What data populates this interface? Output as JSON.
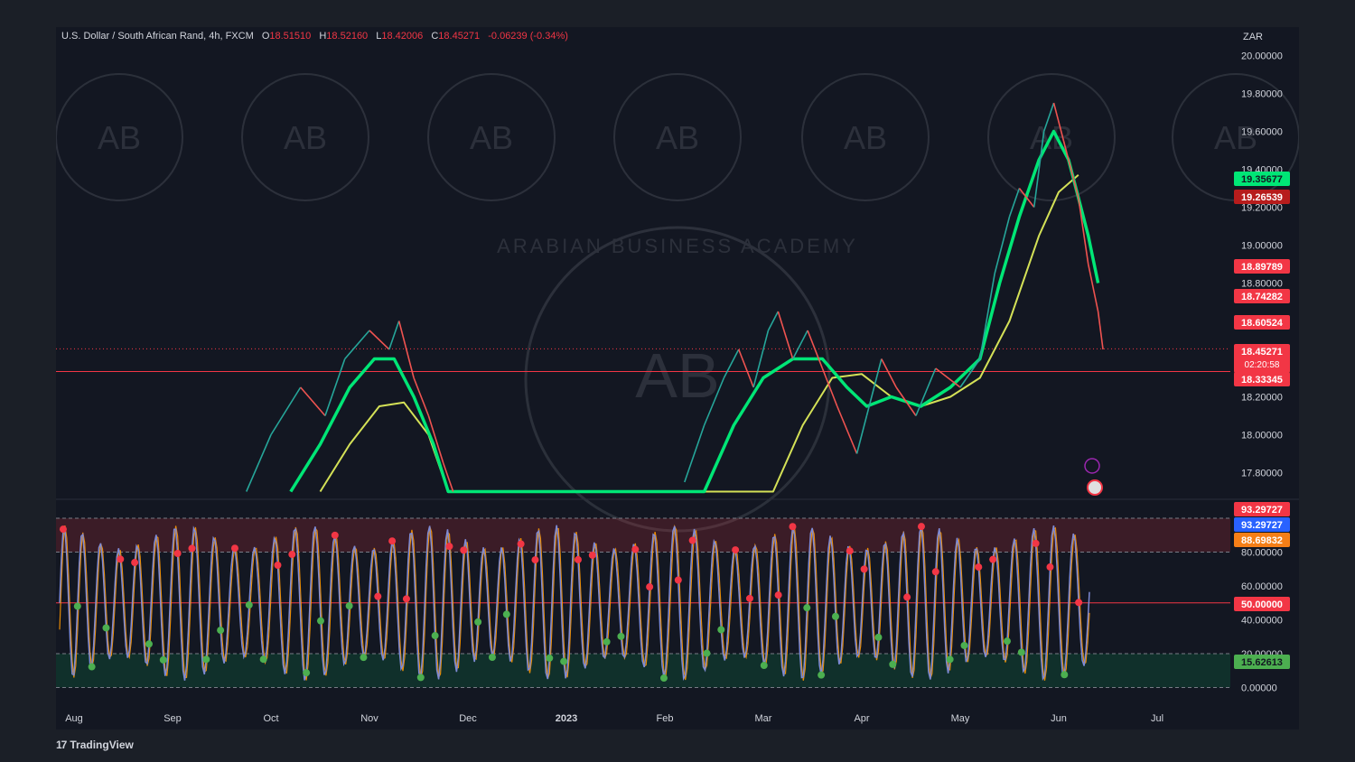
{
  "header": {
    "symbol": "U.S. Dollar / South African Rand, 4h, FXCM",
    "open_label": "O",
    "open": "18.51510",
    "high_label": "H",
    "high": "18.52160",
    "low_label": "L",
    "low": "18.42006",
    "close_label": "C",
    "close": "18.45271",
    "change": "-0.06239 (-0.34%)"
  },
  "currency": "ZAR",
  "brand": "TradingView",
  "watermark_text": "ARABIAN BUSINESS ACADEMY",
  "colors": {
    "background": "#131722",
    "up": "#00e676",
    "down": "#f23645",
    "yellow": "#d4e157",
    "osc": "#7e8ad4"
  },
  "chart_data": [
    {
      "type": "line",
      "title": "U.S. Dollar / South African Rand, 4h, FXCM",
      "x": [
        "Aug",
        "Sep",
        "Oct",
        "Nov",
        "Dec",
        "2023",
        "Feb",
        "Mar",
        "Apr",
        "May",
        "Jun",
        "Jul"
      ],
      "ylim": [
        17.7,
        20.0
      ],
      "y_ticks": [
        "20.00000",
        "19.80000",
        "19.60000",
        "19.40000",
        "19.20000",
        "19.00000",
        "18.80000",
        "18.20000",
        "18.00000",
        "17.80000"
      ],
      "price_series": [
        {
          "t": 1.75,
          "v": 17.7
        },
        {
          "t": 2.0,
          "v": 18.0
        },
        {
          "t": 2.3,
          "v": 18.25
        },
        {
          "t": 2.55,
          "v": 18.1
        },
        {
          "t": 2.75,
          "v": 18.4
        },
        {
          "t": 3.0,
          "v": 18.55
        },
        {
          "t": 3.2,
          "v": 18.45
        },
        {
          "t": 3.3,
          "v": 18.6
        },
        {
          "t": 3.45,
          "v": 18.3
        },
        {
          "t": 3.6,
          "v": 18.1
        },
        {
          "t": 3.75,
          "v": 17.85
        },
        {
          "t": 3.85,
          "v": 17.7
        },
        {
          "t": 6.2,
          "v": 17.75
        },
        {
          "t": 6.4,
          "v": 18.05
        },
        {
          "t": 6.6,
          "v": 18.3
        },
        {
          "t": 6.75,
          "v": 18.45
        },
        {
          "t": 6.9,
          "v": 18.25
        },
        {
          "t": 7.05,
          "v": 18.55
        },
        {
          "t": 7.15,
          "v": 18.65
        },
        {
          "t": 7.3,
          "v": 18.4
        },
        {
          "t": 7.45,
          "v": 18.55
        },
        {
          "t": 7.6,
          "v": 18.35
        },
        {
          "t": 7.75,
          "v": 18.15
        },
        {
          "t": 7.95,
          "v": 17.9
        },
        {
          "t": 8.05,
          "v": 18.1
        },
        {
          "t": 8.2,
          "v": 18.4
        },
        {
          "t": 8.35,
          "v": 18.25
        },
        {
          "t": 8.55,
          "v": 18.1
        },
        {
          "t": 8.75,
          "v": 18.35
        },
        {
          "t": 9.0,
          "v": 18.25
        },
        {
          "t": 9.2,
          "v": 18.4
        },
        {
          "t": 9.35,
          "v": 18.85
        },
        {
          "t": 9.5,
          "v": 19.15
        },
        {
          "t": 9.6,
          "v": 19.3
        },
        {
          "t": 9.75,
          "v": 19.2
        },
        {
          "t": 9.85,
          "v": 19.6
        },
        {
          "t": 9.95,
          "v": 19.75
        },
        {
          "t": 10.05,
          "v": 19.55
        },
        {
          "t": 10.2,
          "v": 19.25
        },
        {
          "t": 10.3,
          "v": 18.9
        },
        {
          "t": 10.4,
          "v": 18.65
        },
        {
          "t": 10.45,
          "v": 18.45
        }
      ],
      "fast_ma": [
        {
          "t": 2.2,
          "v": 17.7
        },
        {
          "t": 2.5,
          "v": 17.95
        },
        {
          "t": 2.8,
          "v": 18.25
        },
        {
          "t": 3.05,
          "v": 18.4
        },
        {
          "t": 3.25,
          "v": 18.4
        },
        {
          "t": 3.45,
          "v": 18.2
        },
        {
          "t": 3.65,
          "v": 17.95
        },
        {
          "t": 3.8,
          "v": 17.7
        },
        {
          "t": 6.4,
          "v": 17.7
        },
        {
          "t": 6.7,
          "v": 18.05
        },
        {
          "t": 7.0,
          "v": 18.3
        },
        {
          "t": 7.3,
          "v": 18.4
        },
        {
          "t": 7.6,
          "v": 18.4
        },
        {
          "t": 7.85,
          "v": 18.25
        },
        {
          "t": 8.05,
          "v": 18.15
        },
        {
          "t": 8.3,
          "v": 18.2
        },
        {
          "t": 8.6,
          "v": 18.15
        },
        {
          "t": 8.9,
          "v": 18.25
        },
        {
          "t": 9.2,
          "v": 18.4
        },
        {
          "t": 9.4,
          "v": 18.8
        },
        {
          "t": 9.6,
          "v": 19.15
        },
        {
          "t": 9.8,
          "v": 19.45
        },
        {
          "t": 9.95,
          "v": 19.6
        },
        {
          "t": 10.1,
          "v": 19.45
        },
        {
          "t": 10.3,
          "v": 19.05
        },
        {
          "t": 10.4,
          "v": 18.8
        }
      ],
      "slow_ma": [
        {
          "t": 2.5,
          "v": 17.7
        },
        {
          "t": 2.8,
          "v": 17.95
        },
        {
          "t": 3.1,
          "v": 18.15
        },
        {
          "t": 3.35,
          "v": 18.17
        },
        {
          "t": 3.6,
          "v": 18.0
        },
        {
          "t": 3.8,
          "v": 17.7
        },
        {
          "t": 7.1,
          "v": 17.7
        },
        {
          "t": 7.4,
          "v": 18.05
        },
        {
          "t": 7.7,
          "v": 18.3
        },
        {
          "t": 8.0,
          "v": 18.32
        },
        {
          "t": 8.3,
          "v": 18.2
        },
        {
          "t": 8.6,
          "v": 18.15
        },
        {
          "t": 8.9,
          "v": 18.2
        },
        {
          "t": 9.2,
          "v": 18.3
        },
        {
          "t": 9.5,
          "v": 18.6
        },
        {
          "t": 9.8,
          "v": 19.05
        },
        {
          "t": 10.0,
          "v": 19.28
        },
        {
          "t": 10.2,
          "v": 19.37
        }
      ],
      "horizontal_lines": [
        {
          "value": 18.33345,
          "style": "solid"
        },
        {
          "value": 18.45271,
          "style": "dotted"
        }
      ],
      "price_labels": [
        {
          "text": "19.35677",
          "value": 19.35677,
          "color": "#00e676",
          "text_color": "#131722"
        },
        {
          "text": "19.26539",
          "value": 19.26539,
          "color": "#b71c1c",
          "text_color": "#ffffff"
        },
        {
          "text": "18.89789",
          "value": 18.89789,
          "color": "#f23645",
          "text_color": "#ffffff"
        },
        {
          "text": "18.74282",
          "value": 18.74282,
          "color": "#f23645",
          "text_color": "#ffffff"
        },
        {
          "text": "18.60524",
          "value": 18.60524,
          "color": "#f23645",
          "text_color": "#ffffff"
        },
        {
          "text": "18.33345",
          "value": 18.33345,
          "color": "#f23645",
          "text_color": "#ffffff"
        }
      ],
      "current_price": {
        "text": "18.45271",
        "countdown": "02:20:58",
        "color": "#f23645"
      }
    },
    {
      "type": "line",
      "title": "",
      "ylim": [
        0,
        100
      ],
      "y_ticks": [
        "80.00000",
        "60.00000",
        "40.00000",
        "20.00000",
        "0.00000"
      ],
      "overbought": 80,
      "oversold": 20,
      "midline": 50,
      "value_labels": [
        {
          "text": "93.29727",
          "value": 93.29727,
          "color": "#f23645"
        },
        {
          "text": "93.29727",
          "value": 93.29727,
          "color": "#2962ff"
        },
        {
          "text": "88.69832",
          "value": 88.69832,
          "color": "#f57f17"
        },
        {
          "text": "50.00000",
          "value": 50,
          "color": "#f23645"
        },
        {
          "text": "15.62613",
          "value": 15.62613,
          "color": "#4caf50"
        }
      ]
    }
  ]
}
